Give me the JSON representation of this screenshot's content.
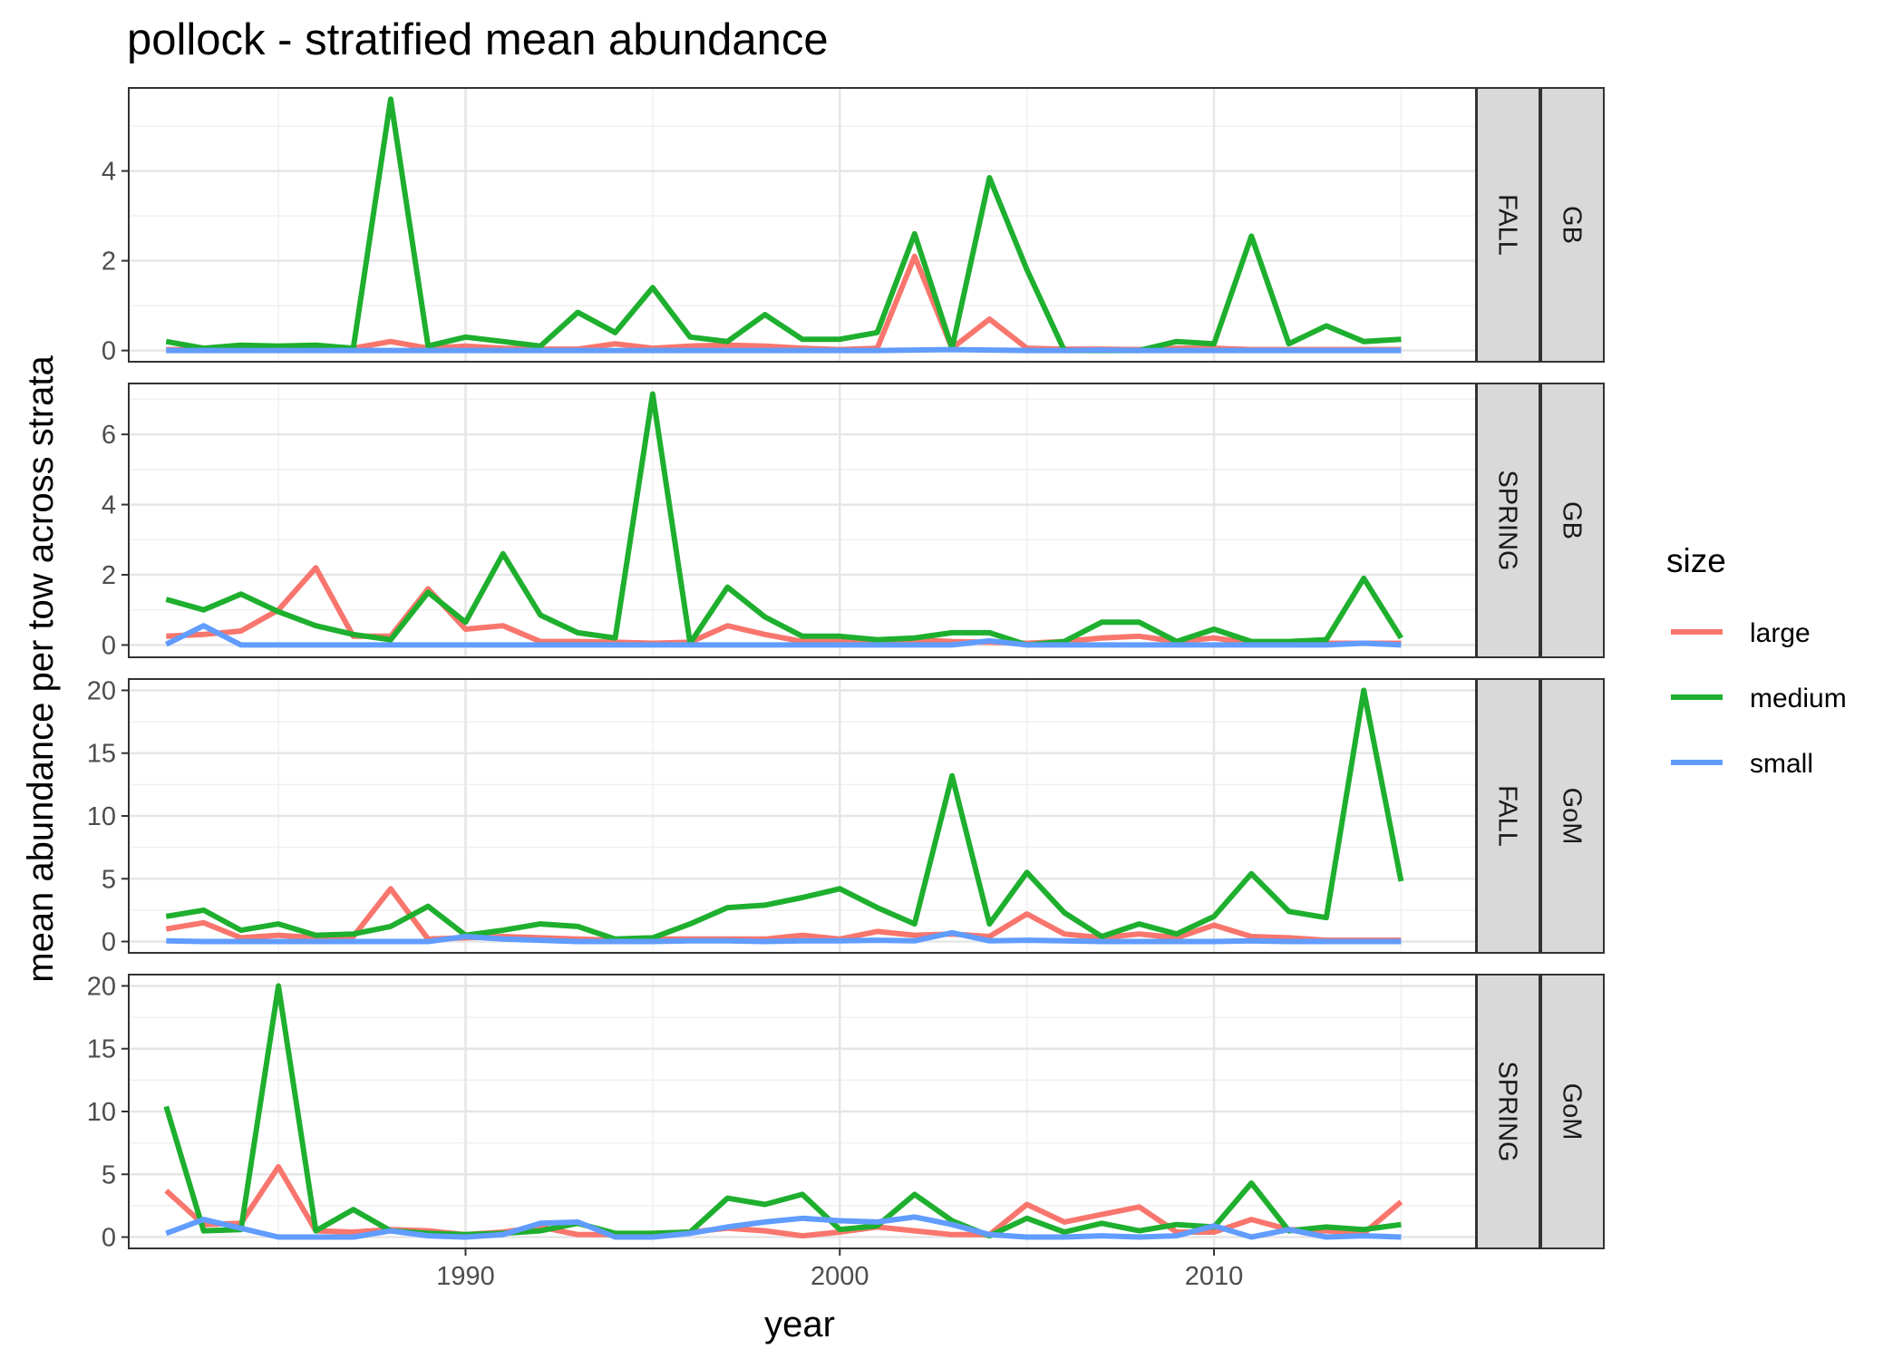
{
  "chart_data": {
    "type": "line",
    "title": "pollock - stratified mean abundance",
    "xlabel": "year",
    "ylabel": "mean abundance per tow across strata",
    "legend": {
      "title": "size",
      "placement": "right"
    },
    "xlim": [
      1981,
      2017
    ],
    "x_ticks": [
      1990,
      2000,
      2010
    ],
    "grid": true,
    "colors": {
      "large": "#F8766D",
      "medium": "#1EAF2E",
      "small": "#619CFF"
    },
    "x": [
      1982,
      1983,
      1984,
      1985,
      1986,
      1987,
      1988,
      1989,
      1990,
      1991,
      1992,
      1993,
      1994,
      1995,
      1996,
      1997,
      1998,
      1999,
      2000,
      2001,
      2002,
      2003,
      2004,
      2005,
      2006,
      2007,
      2008,
      2009,
      2010,
      2011,
      2012,
      2013,
      2014,
      2015
    ],
    "panels": [
      {
        "season": "FALL",
        "region": "GB",
        "ylim": [
          -0.25,
          5.85
        ],
        "y_ticks": [
          0,
          2,
          4
        ],
        "series": [
          {
            "name": "large",
            "values": [
              0.02,
              0.02,
              0.03,
              0.05,
              0.03,
              0.05,
              0.2,
              0.05,
              0.1,
              0.05,
              0.03,
              0.03,
              0.15,
              0.05,
              0.1,
              0.12,
              0.1,
              0.05,
              0.02,
              0.05,
              2.1,
              0.05,
              0.7,
              0.05,
              0.03,
              0.03,
              0.02,
              0.05,
              0.05,
              0.02,
              0.02,
              0.02,
              0.02,
              0.02
            ]
          },
          {
            "name": "medium",
            "values": [
              0.2,
              0.05,
              0.12,
              0.1,
              0.12,
              0.05,
              5.6,
              0.1,
              0.3,
              0.2,
              0.1,
              0.85,
              0.4,
              1.4,
              0.3,
              0.2,
              0.8,
              0.25,
              0.25,
              0.4,
              2.6,
              0.05,
              3.85,
              1.8,
              0.0,
              0.0,
              0.0,
              0.2,
              0.15,
              2.55,
              0.15,
              0.55,
              0.2,
              0.25
            ]
          },
          {
            "name": "small",
            "values": [
              0.0,
              0.0,
              0.0,
              0.0,
              0.0,
              0.0,
              0.0,
              0.0,
              0.0,
              0.0,
              0.0,
              0.0,
              0.0,
              0.0,
              0.0,
              0.0,
              0.0,
              0.0,
              0.0,
              0.0,
              0.01,
              0.02,
              0.01,
              0.0,
              0.0,
              0.01,
              0.0,
              0.0,
              0.0,
              0.0,
              0.0,
              0.0,
              0.0,
              0.0
            ]
          }
        ]
      },
      {
        "season": "SPRING",
        "region": "GB",
        "ylim": [
          -0.35,
          7.45
        ],
        "y_ticks": [
          0,
          2,
          4,
          6
        ],
        "series": [
          {
            "name": "large",
            "values": [
              0.25,
              0.3,
              0.4,
              1.0,
              2.2,
              0.25,
              0.25,
              1.6,
              0.45,
              0.55,
              0.1,
              0.1,
              0.08,
              0.05,
              0.08,
              0.55,
              0.3,
              0.1,
              0.1,
              0.08,
              0.15,
              0.1,
              0.08,
              0.05,
              0.1,
              0.2,
              0.25,
              0.1,
              0.2,
              0.05,
              0.05,
              0.05,
              0.05,
              0.05
            ]
          },
          {
            "name": "medium",
            "values": [
              1.3,
              1.0,
              1.45,
              0.95,
              0.55,
              0.3,
              0.15,
              1.5,
              0.65,
              2.6,
              0.85,
              0.35,
              0.2,
              7.15,
              0.05,
              1.65,
              0.8,
              0.25,
              0.25,
              0.15,
              0.2,
              0.35,
              0.35,
              0.0,
              0.1,
              0.65,
              0.65,
              0.1,
              0.45,
              0.1,
              0.1,
              0.15,
              1.9,
              0.2
            ]
          },
          {
            "name": "small",
            "values": [
              0.02,
              0.55,
              0.0,
              0.0,
              0.0,
              0.0,
              0.0,
              0.0,
              0.0,
              0.0,
              0.0,
              0.0,
              0.0,
              0.0,
              0.0,
              0.0,
              0.0,
              0.0,
              0.0,
              0.0,
              0.0,
              0.0,
              0.12,
              0.0,
              0.0,
              0.0,
              0.0,
              0.0,
              0.0,
              0.0,
              0.0,
              0.0,
              0.05,
              0.0
            ]
          }
        ]
      },
      {
        "season": "FALL",
        "region": "GoM",
        "ylim": [
          -0.9,
          20.9
        ],
        "y_ticks": [
          0,
          5,
          10,
          15,
          20
        ],
        "series": [
          {
            "name": "large",
            "values": [
              1.0,
              1.5,
              0.3,
              0.5,
              0.3,
              0.4,
              4.2,
              0.2,
              0.3,
              0.4,
              0.3,
              0.2,
              0.1,
              0.2,
              0.2,
              0.2,
              0.2,
              0.5,
              0.2,
              0.8,
              0.5,
              0.6,
              0.4,
              2.2,
              0.6,
              0.3,
              0.6,
              0.3,
              1.3,
              0.4,
              0.3,
              0.1,
              0.1,
              0.1
            ]
          },
          {
            "name": "medium",
            "values": [
              2.0,
              2.5,
              0.9,
              1.4,
              0.5,
              0.6,
              1.2,
              2.8,
              0.5,
              0.9,
              1.4,
              1.2,
              0.2,
              0.3,
              1.4,
              2.7,
              2.9,
              3.5,
              4.2,
              2.7,
              1.4,
              13.2,
              1.4,
              5.5,
              2.3,
              0.4,
              1.4,
              0.6,
              2.0,
              5.4,
              2.4,
              1.9,
              20.0,
              4.8
            ]
          },
          {
            "name": "small",
            "values": [
              0.05,
              0.0,
              0.0,
              0.0,
              0.0,
              0.0,
              0.0,
              0.0,
              0.4,
              0.2,
              0.1,
              0.0,
              0.0,
              0.0,
              0.05,
              0.05,
              0.0,
              0.05,
              0.05,
              0.1,
              0.05,
              0.7,
              0.05,
              0.1,
              0.05,
              0.0,
              0.0,
              0.0,
              0.0,
              0.05,
              0.0,
              0.0,
              0.0,
              0.0
            ]
          }
        ]
      },
      {
        "season": "SPRING",
        "region": "GoM",
        "ylim": [
          -0.9,
          20.9
        ],
        "y_ticks": [
          0,
          5,
          10,
          15,
          20
        ],
        "series": [
          {
            "name": "large",
            "values": [
              3.7,
              1.0,
              1.1,
              5.6,
              0.5,
              0.4,
              0.6,
              0.5,
              0.2,
              0.4,
              0.8,
              0.2,
              0.2,
              0.3,
              0.4,
              0.7,
              0.5,
              0.1,
              0.4,
              0.8,
              0.5,
              0.2,
              0.2,
              2.6,
              1.2,
              1.8,
              2.4,
              0.4,
              0.4,
              1.4,
              0.6,
              0.5,
              0.3,
              2.8
            ]
          },
          {
            "name": "medium",
            "values": [
              10.4,
              0.5,
              0.6,
              20.0,
              0.5,
              2.2,
              0.5,
              0.3,
              0.2,
              0.3,
              0.5,
              1.1,
              0.3,
              0.3,
              0.4,
              3.1,
              2.6,
              3.4,
              0.6,
              0.9,
              3.4,
              1.3,
              0.1,
              1.5,
              0.4,
              1.1,
              0.5,
              1.0,
              0.8,
              4.3,
              0.5,
              0.8,
              0.6,
              1.0
            ]
          },
          {
            "name": "small",
            "values": [
              0.3,
              1.4,
              0.7,
              0.0,
              0.0,
              0.0,
              0.5,
              0.1,
              0.0,
              0.2,
              1.1,
              1.2,
              0.0,
              0.0,
              0.3,
              0.8,
              1.2,
              1.5,
              1.3,
              1.2,
              1.6,
              1.0,
              0.2,
              0.0,
              0.0,
              0.1,
              0.0,
              0.1,
              0.9,
              0.0,
              0.6,
              0.0,
              0.1,
              0.0
            ]
          }
        ]
      }
    ]
  }
}
